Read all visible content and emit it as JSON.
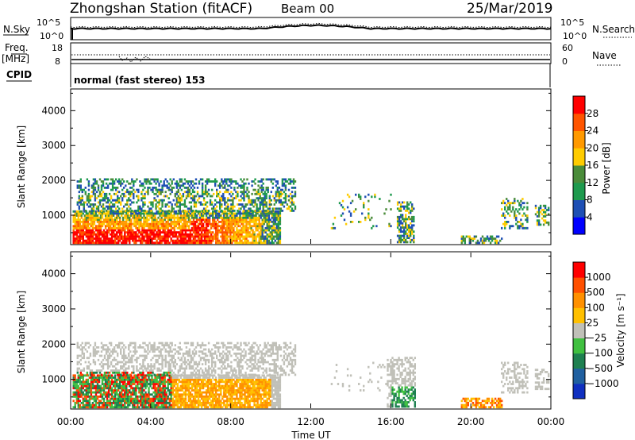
{
  "header": {
    "station_title": "Zhongshan Station (fitACF)",
    "beam": "Beam 00",
    "date": "25/Mar/2019"
  },
  "noise_panel": {
    "left_label": "N.Sky",
    "right_label": "N.Search",
    "left_ticks": [
      "10^5",
      "10^0"
    ],
    "right_ticks": [
      "10^5",
      "10^0"
    ]
  },
  "freq_panel": {
    "left_label": "Freq.",
    "left_unit": "[MHz]",
    "right_label": "Nave",
    "left_ticks": [
      "18",
      "8"
    ],
    "right_ticks": [
      "60",
      "0"
    ]
  },
  "cpid_panel": {
    "label": "CPID",
    "text": "normal (fast stereo) 153"
  },
  "chart_data": [
    {
      "type": "heatmap",
      "name": "power",
      "ylabel": "Slant Range [km]",
      "ylim": [
        180,
        4600
      ],
      "yticks": [
        "1000",
        "2000",
        "3000",
        "4000"
      ],
      "xlabel": "Time UT",
      "xlim": [
        0,
        24
      ],
      "xticks": [
        "00:00",
        "04:00",
        "08:00",
        "12:00",
        "16:00",
        "20:00",
        "00:00"
      ],
      "colorbar_label": "Power [dB]",
      "colorbar_ticks": [
        "4",
        "8",
        "12",
        "16",
        "20",
        "24",
        "28"
      ],
      "colorbar_colors": [
        "#0000ff",
        "#1e4fb4",
        "#1e9a4e",
        "#4a8c3a",
        "#ffcc00",
        "#ff9900",
        "#ff5500",
        "#ff0000"
      ]
    },
    {
      "type": "heatmap",
      "name": "velocity",
      "ylabel": "Slant Range [km]",
      "ylim": [
        180,
        4600
      ],
      "yticks": [
        "1000",
        "2000",
        "3000",
        "4000"
      ],
      "xlabel": "Time UT",
      "xlim": [
        0,
        24
      ],
      "xticks": [
        "00:00",
        "04:00",
        "08:00",
        "12:00",
        "16:00",
        "20:00",
        "00:00"
      ],
      "colorbar_label": "Velocity [m s⁻¹]",
      "colorbar_ticks": [
        "1000",
        "500",
        "100",
        "25",
        "−25",
        "−100",
        "−500",
        "−1000"
      ],
      "colorbar_colors": [
        "#1030c0",
        "#2060a0",
        "#1e8050",
        "#40c040",
        "#c0c0b8",
        "#ffc000",
        "#ff9000",
        "#ff5000",
        "#ff0000"
      ]
    }
  ]
}
